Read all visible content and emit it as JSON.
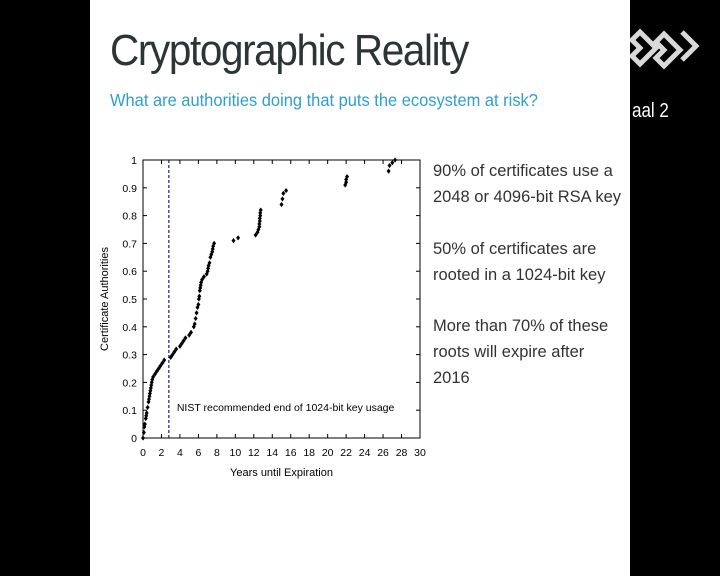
{
  "slide": {
    "title": "Cryptographic Reality",
    "subtitle": "What are authorities doing that puts the ecosystem at risk?",
    "bullets": [
      "90% of certificates use a 2048 or 4096-bit RSA key",
      "50% of certificates are rooted in a 1024-bit key",
      "More than 70% of these roots will expire after 2016"
    ]
  },
  "video_overlay": {
    "room_label": "aal 2",
    "logo_icon": "conference-logo-icon",
    "colors": {
      "background": "#000000",
      "logo": "#d9d9d9"
    }
  },
  "chart_data": {
    "type": "scatter",
    "title": "",
    "xlabel": "Years until Expiration",
    "ylabel": "Certificate Authorities",
    "xlim": [
      0,
      30
    ],
    "ylim": [
      0,
      1
    ],
    "xticks": [
      0,
      2,
      4,
      6,
      8,
      10,
      12,
      14,
      16,
      18,
      20,
      22,
      24,
      26,
      28,
      30
    ],
    "yticks": [
      "0",
      "0.1",
      "0.2",
      "0.3",
      "0.4",
      "0.5",
      "0.6",
      "0.7",
      "0.8",
      "0.9",
      "1"
    ],
    "grid": false,
    "legend": "none",
    "marker_color": "#000000",
    "annotation": {
      "x": 2.8,
      "label": "NIST recommended end of 1024-bit key usage",
      "color": "#1a1a8c",
      "style": "dashed"
    },
    "points": [
      [
        0.0,
        0.0
      ],
      [
        0.1,
        0.02
      ],
      [
        0.15,
        0.04
      ],
      [
        0.2,
        0.05
      ],
      [
        0.3,
        0.07
      ],
      [
        0.35,
        0.08
      ],
      [
        0.4,
        0.09
      ],
      [
        0.5,
        0.11
      ],
      [
        0.6,
        0.13
      ],
      [
        0.65,
        0.14
      ],
      [
        0.7,
        0.15
      ],
      [
        0.75,
        0.16
      ],
      [
        0.8,
        0.17
      ],
      [
        0.85,
        0.18
      ],
      [
        0.9,
        0.19
      ],
      [
        0.95,
        0.2
      ],
      [
        1.0,
        0.21
      ],
      [
        1.1,
        0.22
      ],
      [
        1.3,
        0.23
      ],
      [
        1.5,
        0.24
      ],
      [
        1.7,
        0.25
      ],
      [
        1.9,
        0.26
      ],
      [
        2.1,
        0.27
      ],
      [
        2.3,
        0.28
      ],
      [
        3.0,
        0.29
      ],
      [
        3.2,
        0.3
      ],
      [
        3.4,
        0.31
      ],
      [
        3.6,
        0.32
      ],
      [
        4.0,
        0.33
      ],
      [
        4.2,
        0.34
      ],
      [
        4.4,
        0.35
      ],
      [
        4.6,
        0.36
      ],
      [
        5.0,
        0.37
      ],
      [
        5.2,
        0.38
      ],
      [
        5.5,
        0.4
      ],
      [
        5.6,
        0.41
      ],
      [
        5.7,
        0.43
      ],
      [
        5.8,
        0.45
      ],
      [
        5.9,
        0.47
      ],
      [
        6.0,
        0.48
      ],
      [
        6.05,
        0.5
      ],
      [
        6.1,
        0.51
      ],
      [
        6.15,
        0.53
      ],
      [
        6.2,
        0.54
      ],
      [
        6.25,
        0.55
      ],
      [
        6.3,
        0.56
      ],
      [
        6.4,
        0.57
      ],
      [
        6.6,
        0.58
      ],
      [
        6.9,
        0.59
      ],
      [
        7.0,
        0.6
      ],
      [
        7.05,
        0.61
      ],
      [
        7.1,
        0.62
      ],
      [
        7.2,
        0.63
      ],
      [
        7.3,
        0.65
      ],
      [
        7.4,
        0.66
      ],
      [
        7.5,
        0.67
      ],
      [
        7.55,
        0.68
      ],
      [
        7.6,
        0.69
      ],
      [
        7.7,
        0.7
      ],
      [
        9.8,
        0.71
      ],
      [
        10.3,
        0.72
      ],
      [
        12.2,
        0.73
      ],
      [
        12.4,
        0.74
      ],
      [
        12.5,
        0.75
      ],
      [
        12.6,
        0.76
      ],
      [
        12.6,
        0.77
      ],
      [
        12.65,
        0.78
      ],
      [
        12.65,
        0.79
      ],
      [
        12.7,
        0.8
      ],
      [
        12.7,
        0.81
      ],
      [
        12.75,
        0.82
      ],
      [
        15.0,
        0.84
      ],
      [
        15.1,
        0.86
      ],
      [
        15.2,
        0.88
      ],
      [
        15.5,
        0.89
      ],
      [
        21.9,
        0.91
      ],
      [
        22.0,
        0.92
      ],
      [
        22.0,
        0.93
      ],
      [
        22.1,
        0.94
      ],
      [
        26.6,
        0.96
      ],
      [
        26.7,
        0.98
      ],
      [
        27.0,
        0.99
      ],
      [
        27.3,
        1.0
      ]
    ]
  }
}
